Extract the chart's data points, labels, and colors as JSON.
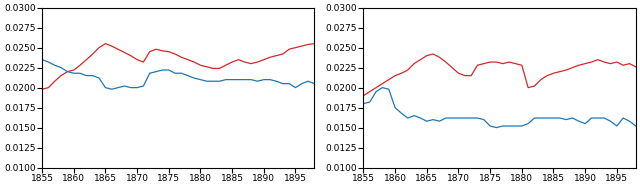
{
  "x_values": [
    1855,
    1856,
    1857,
    1858,
    1859,
    1860,
    1861,
    1862,
    1863,
    1864,
    1865,
    1866,
    1867,
    1868,
    1869,
    1870,
    1871,
    1872,
    1873,
    1874,
    1875,
    1876,
    1877,
    1878,
    1879,
    1880,
    1881,
    1882,
    1883,
    1884,
    1885,
    1886,
    1887,
    1888,
    1889,
    1890,
    1891,
    1892,
    1893,
    1894,
    1895,
    1896,
    1897,
    1898
  ],
  "ylim": [
    0.01,
    0.03
  ],
  "yticks": [
    0.01,
    0.0125,
    0.015,
    0.0175,
    0.02,
    0.0225,
    0.025,
    0.0275,
    0.03
  ],
  "xticks": [
    1855,
    1860,
    1865,
    1870,
    1875,
    1880,
    1885,
    1890,
    1895
  ],
  "color_red": "#d62728",
  "color_blue": "#1f77b4",
  "left_red": [
    0.0198,
    0.02,
    0.0208,
    0.0215,
    0.022,
    0.0222,
    0.0228,
    0.0235,
    0.0242,
    0.025,
    0.0255,
    0.0252,
    0.0248,
    0.0244,
    0.024,
    0.0235,
    0.0232,
    0.0245,
    0.0248,
    0.0246,
    0.0245,
    0.0242,
    0.0238,
    0.0235,
    0.0232,
    0.0228,
    0.0226,
    0.0224,
    0.0224,
    0.0228,
    0.0232,
    0.0235,
    0.0232,
    0.023,
    0.0232,
    0.0235,
    0.0238,
    0.024,
    0.0242,
    0.0248,
    0.025,
    0.0252,
    0.0254,
    0.0255
  ],
  "left_blue": [
    0.0235,
    0.0232,
    0.0228,
    0.0225,
    0.022,
    0.0218,
    0.0218,
    0.0215,
    0.0215,
    0.0212,
    0.02,
    0.0198,
    0.02,
    0.0202,
    0.02,
    0.02,
    0.0202,
    0.0218,
    0.022,
    0.0222,
    0.0222,
    0.0218,
    0.0218,
    0.0215,
    0.0212,
    0.021,
    0.0208,
    0.0208,
    0.0208,
    0.021,
    0.021,
    0.021,
    0.021,
    0.021,
    0.0208,
    0.021,
    0.021,
    0.0208,
    0.0205,
    0.0205,
    0.02,
    0.0205,
    0.0208,
    0.0205
  ],
  "right_red": [
    0.019,
    0.0195,
    0.02,
    0.0205,
    0.021,
    0.0215,
    0.0218,
    0.0222,
    0.023,
    0.0235,
    0.024,
    0.0242,
    0.0238,
    0.0232,
    0.0225,
    0.0218,
    0.0215,
    0.0215,
    0.0228,
    0.023,
    0.0232,
    0.0232,
    0.023,
    0.0232,
    0.023,
    0.0228,
    0.02,
    0.0202,
    0.021,
    0.0215,
    0.0218,
    0.022,
    0.0222,
    0.0225,
    0.0228,
    0.023,
    0.0232,
    0.0235,
    0.0232,
    0.023,
    0.0232,
    0.0228,
    0.023,
    0.0226
  ],
  "right_blue": [
    0.018,
    0.0182,
    0.0195,
    0.02,
    0.0198,
    0.0175,
    0.0168,
    0.0162,
    0.0165,
    0.0162,
    0.0158,
    0.016,
    0.0158,
    0.0162,
    0.0162,
    0.0162,
    0.0162,
    0.0162,
    0.0162,
    0.016,
    0.0152,
    0.015,
    0.0152,
    0.0152,
    0.0152,
    0.0152,
    0.0155,
    0.0162,
    0.0162,
    0.0162,
    0.0162,
    0.0162,
    0.016,
    0.0162,
    0.0158,
    0.0155,
    0.0162,
    0.0162,
    0.0162,
    0.0158,
    0.0152,
    0.0162,
    0.0158,
    0.0152
  ]
}
